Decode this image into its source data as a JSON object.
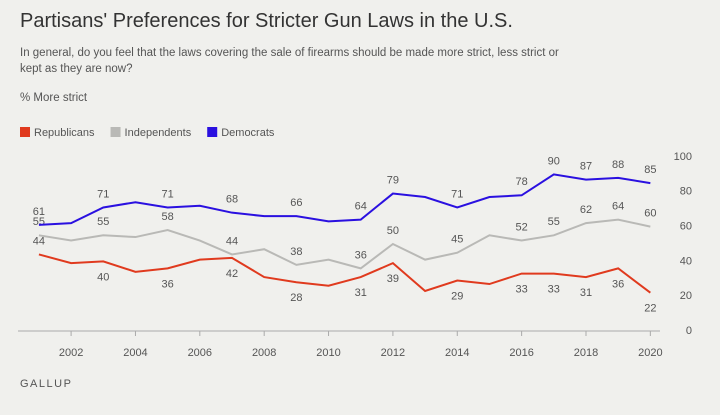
{
  "chart_data": {
    "type": "line",
    "title": "Partisans' Preferences for Stricter Gun Laws in the U.S.",
    "subtitle": "In general, do you feel that the laws covering the sale of firearms should be made more strict, less strict or kept as they are now?",
    "y_label": "% More strict",
    "source": "GALLUP",
    "x": [
      2001,
      2002,
      2003,
      2004,
      2005,
      2006,
      2007,
      2008,
      2009,
      2010,
      2011,
      2012,
      2013,
      2014,
      2015,
      2016,
      2017,
      2018,
      2019,
      2020
    ],
    "xlim": [
      2000.35,
      2020.3
    ],
    "xticks": [
      2002,
      2004,
      2006,
      2008,
      2010,
      2012,
      2014,
      2016,
      2018,
      2020
    ],
    "ylim": [
      0,
      100
    ],
    "yticks": [
      0,
      20,
      40,
      60,
      80,
      100
    ],
    "y_axis_side": "right",
    "grid": false,
    "legend": "top-left",
    "series": [
      {
        "name": "Republicans",
        "color": "#e03a1e",
        "values": [
          44,
          39,
          40,
          34,
          36,
          41,
          42,
          31,
          28,
          26,
          31,
          39,
          23,
          29,
          27,
          33,
          33,
          31,
          36,
          22
        ],
        "value_labels": [
          44,
          null,
          40,
          null,
          36,
          null,
          42,
          null,
          28,
          null,
          31,
          39,
          null,
          29,
          null,
          33,
          33,
          31,
          36,
          22
        ]
      },
      {
        "name": "Independents",
        "color": "#b9b9b6",
        "values": [
          55,
          52,
          55,
          54,
          58,
          52,
          44,
          47,
          38,
          41,
          36,
          50,
          41,
          45,
          55,
          52,
          55,
          62,
          64,
          60
        ],
        "value_labels": [
          55,
          null,
          55,
          null,
          58,
          null,
          44,
          null,
          38,
          null,
          36,
          50,
          null,
          45,
          null,
          52,
          55,
          62,
          64,
          60
        ]
      },
      {
        "name": "Democrats",
        "color": "#2a10e0",
        "values": [
          61,
          62,
          71,
          74,
          71,
          72,
          68,
          66,
          66,
          63,
          64,
          79,
          77,
          71,
          77,
          78,
          90,
          87,
          88,
          85
        ],
        "value_labels": [
          61,
          null,
          71,
          null,
          71,
          null,
          68,
          null,
          66,
          null,
          64,
          79,
          null,
          71,
          null,
          78,
          90,
          87,
          88,
          85
        ]
      }
    ]
  }
}
